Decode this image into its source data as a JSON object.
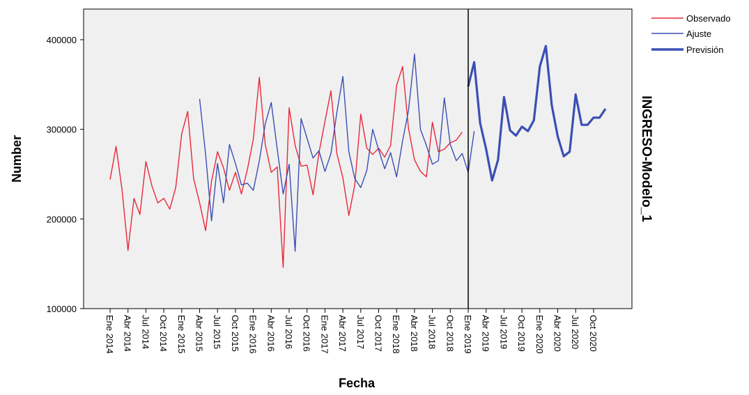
{
  "chart_data": {
    "type": "line",
    "xlabel": "Fecha",
    "ylabel": "Number",
    "side_label": "INGRESO-Modelo_1",
    "ylim": [
      100000,
      400000
    ],
    "ytick_labels": [
      "100000",
      "200000",
      "300000",
      "400000"
    ],
    "ytick_values": [
      100000,
      200000,
      300000,
      400000
    ],
    "xtick_labels": [
      "Ene 2014",
      "Abr 2014",
      "Jul 2014",
      "Oct 2014",
      "Ene 2015",
      "Abr 2015",
      "Jul 2015",
      "Oct 2015",
      "Ene 2016",
      "Abr 2016",
      "Jul 2016",
      "Oct 2016",
      "Ene 2017",
      "Abr 2017",
      "Jul 2017",
      "Oct 2017",
      "Ene 2018",
      "Abr 2018",
      "Jul 2018",
      "Oct 2018",
      "Ene 2019",
      "Abr 2019",
      "Jul 2019",
      "Oct 2019",
      "Ene 2020",
      "Abr 2020",
      "Jul 2020",
      "Oct 2020"
    ],
    "forecast_start_label": "Ene 2019",
    "grid": false,
    "legend_position": "top-right",
    "colors": {
      "observado": "#e8273a",
      "ajuste": "#3a4fb4",
      "prevision": "#3a4fb4",
      "plot_bg": "#f0f0f0"
    },
    "legend": [
      {
        "key": "observado",
        "label": "Observado"
      },
      {
        "key": "ajuste",
        "label": "Ajuste"
      },
      {
        "key": "prevision",
        "label": "Previsión"
      }
    ],
    "series": [
      {
        "name": "Observado",
        "start": "Ene 2014",
        "values": [
          244000,
          281000,
          233000,
          165000,
          223000,
          205000,
          264000,
          237000,
          218000,
          223000,
          211000,
          235000,
          295000,
          320000,
          245000,
          218000,
          187000,
          242000,
          275000,
          257000,
          232000,
          252000,
          228000,
          255000,
          289000,
          358000,
          283000,
          252000,
          258000,
          146000,
          324000,
          282000,
          259000,
          260000,
          227000,
          274000,
          309000,
          343000,
          273000,
          246000,
          204000,
          238000,
          317000,
          279000,
          272000,
          279000,
          269000,
          282000,
          349000,
          370000,
          301000,
          266000,
          253000,
          247000,
          308000,
          275000,
          278000,
          285000,
          288000,
          297000
        ]
      },
      {
        "name": "Ajuste",
        "start": "Abr 2015",
        "values": [
          334000,
          272000,
          198000,
          262000,
          218000,
          283000,
          262000,
          238000,
          240000,
          232000,
          265000,
          306000,
          330000,
          278000,
          228000,
          261000,
          164000,
          312000,
          290000,
          268000,
          276000,
          253000,
          273000,
          319000,
          359000,
          275000,
          245000,
          235000,
          254000,
          300000,
          277000,
          256000,
          274000,
          247000,
          287000,
          321000,
          384000,
          300000,
          282000,
          261000,
          265000,
          335000,
          283000,
          265000,
          273000,
          252000,
          298000
        ]
      },
      {
        "name": "Previsión",
        "start": "Ene 2019",
        "values": [
          348000,
          375000,
          307000,
          278000,
          243000,
          266000,
          336000,
          299000,
          293000,
          303000,
          298000,
          310000,
          370000,
          393000,
          327000,
          292000,
          270000,
          275000,
          339000,
          305000,
          305000,
          313000,
          313000,
          323000
        ]
      }
    ]
  }
}
